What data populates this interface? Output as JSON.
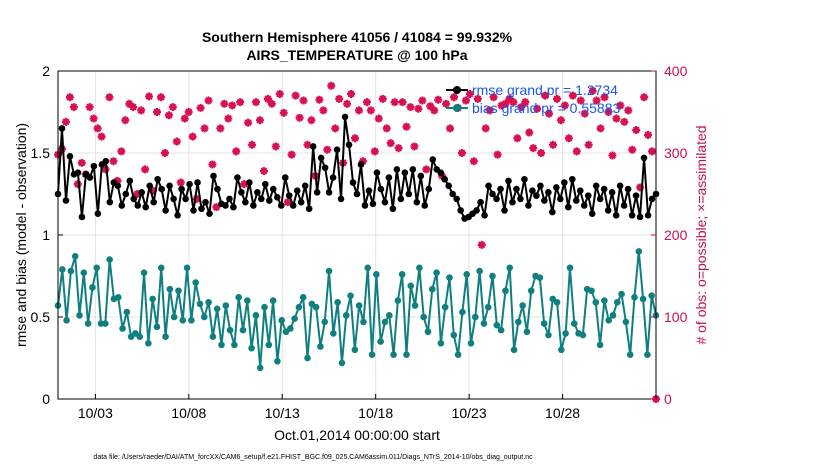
{
  "chart_data": {
    "type": "line",
    "title_line1": "Southern Hemisphere 41056 / 41084 = 99.932%",
    "title_line2": "AIRS_TEMPERATURE @ 100 hPa",
    "xlabel": "Oct.01,2014 00:00:00 start",
    "ylabel_left": "rmse and bias (model - observation)",
    "ylabel_right": "# of obs: o=possible; ×=assimilated",
    "xlim": [
      0,
      32
    ],
    "ylim_left": [
      0,
      2
    ],
    "ylim_right": [
      0,
      400
    ],
    "x_ticks": [
      {
        "x": 2,
        "label": "10/03"
      },
      {
        "x": 7,
        "label": "10/08"
      },
      {
        "x": 12,
        "label": "10/13"
      },
      {
        "x": 17,
        "label": "10/18"
      },
      {
        "x": 22,
        "label": "10/23"
      },
      {
        "x": 27,
        "label": "10/28"
      }
    ],
    "y_ticks_left": [
      "0",
      "0.5",
      "1",
      "1.5",
      "2"
    ],
    "y_ticks_right": [
      "0",
      "100",
      "200",
      "300",
      "400"
    ],
    "grid": true,
    "legend_position": "top-right",
    "colors": {
      "rmse": "#000000",
      "bias": "#0f7f7f",
      "obs": "#d8104f",
      "right_axis": "#c8104f",
      "legend_text": "#1a56e8"
    },
    "series": [
      {
        "name": "rmse grand pr = 1.2734",
        "axis": "left",
        "values": [
          1.25,
          1.65,
          1.21,
          1.48,
          1.37,
          1.38,
          1.11,
          1.37,
          1.35,
          1.42,
          1.13,
          1.43,
          1.45,
          1.2,
          1.32,
          1.3,
          1.18,
          1.25,
          1.33,
          1.22,
          1.18,
          1.26,
          1.17,
          1.3,
          1.2,
          1.34,
          1.28,
          1.15,
          1.3,
          1.22,
          1.12,
          1.28,
          1.22,
          1.31,
          1.15,
          1.32,
          1.16,
          1.2,
          1.13,
          1.36,
          1.28,
          1.19,
          1.18,
          1.22,
          1.17,
          1.35,
          1.26,
          1.2,
          1.32,
          1.18,
          1.26,
          1.22,
          1.31,
          1.21,
          1.28,
          1.23,
          1.18,
          1.35,
          1.24,
          1.18,
          1.27,
          1.2,
          1.3,
          1.16,
          1.54,
          1.26,
          1.47,
          1.41,
          1.26,
          1.35,
          1.52,
          1.22,
          1.72,
          1.55,
          1.32,
          1.25,
          1.43,
          1.18,
          1.27,
          1.19,
          1.38,
          1.28,
          1.2,
          1.35,
          1.16,
          1.4,
          1.22,
          1.38,
          1.25,
          1.4,
          1.2,
          1.36,
          1.18,
          1.28,
          1.46,
          1.4,
          1.38,
          1.34,
          1.3,
          1.25,
          1.22,
          1.15,
          1.1,
          1.11,
          1.13,
          1.15,
          1.2,
          1.12,
          1.3,
          1.25,
          1.22,
          1.28,
          1.15,
          1.33,
          1.2,
          1.28,
          1.22,
          1.34,
          1.18,
          1.27,
          1.24,
          1.3,
          1.21,
          1.26,
          1.14,
          1.29,
          1.22,
          1.32,
          1.17,
          1.34,
          1.21,
          1.27,
          1.18,
          1.24,
          1.13,
          1.3,
          1.22,
          1.28,
          1.15,
          1.26,
          1.12,
          1.3,
          1.18,
          1.28,
          1.12,
          1.24,
          1.11,
          1.47,
          1.12,
          1.22,
          1.25
        ]
      },
      {
        "name": "bias grand pr = 0.55883",
        "axis": "left",
        "values": [
          0.57,
          0.79,
          0.48,
          0.78,
          0.87,
          0.51,
          0.77,
          0.46,
          0.68,
          0.8,
          0.46,
          0.46,
          0.85,
          0.61,
          0.62,
          0.43,
          0.53,
          0.38,
          0.4,
          0.38,
          0.77,
          0.34,
          0.61,
          0.44,
          0.8,
          0.38,
          0.67,
          0.5,
          0.66,
          0.48,
          0.8,
          0.48,
          0.71,
          0.58,
          0.5,
          0.59,
          0.38,
          0.55,
          0.33,
          0.57,
          0.42,
          0.33,
          0.62,
          0.42,
          0.6,
          0.31,
          0.51,
          0.19,
          0.56,
          0.33,
          0.6,
          0.23,
          0.48,
          0.41,
          0.43,
          0.49,
          0.56,
          0.62,
          0.25,
          0.58,
          0.56,
          0.32,
          0.47,
          0.78,
          0.4,
          0.59,
          0.22,
          0.51,
          0.63,
          0.3,
          0.57,
          0.47,
          0.8,
          0.27,
          0.76,
          0.35,
          0.47,
          0.51,
          0.27,
          0.6,
          0.76,
          0.27,
          0.69,
          0.57,
          0.8,
          0.5,
          0.41,
          0.67,
          0.77,
          0.34,
          0.56,
          0.74,
          0.39,
          0.27,
          0.53,
          0.76,
          0.34,
          0.5,
          0.78,
          0.46,
          0.56,
          0.75,
          0.45,
          0.42,
          0.66,
          0.8,
          0.3,
          0.47,
          0.57,
          0.41,
          0.66,
          0.75,
          0.74,
          0.46,
          0.39,
          0.61,
          0.59,
          0.3,
          0.4,
          0.8,
          0.46,
          0.4,
          0.39,
          0.67,
          0.66,
          0.59,
          0.33,
          0.6,
          0.48,
          0.51,
          0.59,
          0.64,
          0.47,
          0.27,
          0.62,
          0.9,
          0.61,
          0.27,
          0.63,
          0.51
        ]
      },
      {
        "name": "obs possible",
        "axis": "right",
        "values": [
          298,
          305,
          338,
          368,
          356,
          262,
          288,
          274,
          356,
          342,
          330,
          320,
          280,
          368,
          290,
          266,
          302,
          340,
          360,
          356,
          250,
          352,
          280,
          369,
          254,
          350,
          368,
          300,
          346,
          356,
          314,
          264,
          342,
          350,
          320,
          244,
          355,
          330,
          364,
          286,
          234,
          330,
          360,
          342,
          358,
          302,
          362,
          262,
          337,
          310,
          362,
          340,
          278,
          366,
          360,
          308,
          372,
          349,
          240,
          298,
          370,
          343,
          364,
          310,
          340,
          272,
          365,
          352,
          304,
          382,
          330,
          366,
          288,
          360,
          372,
          318,
          352,
          290,
          362,
          352,
          302,
          342,
          366,
          330,
          312,
          362,
          306,
          362,
          332,
          356,
          308,
          354,
          364,
          280,
          357,
          352,
          365,
          272,
          360,
          330,
          368,
          355,
          300,
          364,
          372,
          290,
          366,
          188,
          330,
          352,
          368,
          298,
          358,
          360,
          366,
          362,
          318,
          356,
          362,
          325,
          306,
          354,
          300,
          370,
          348,
          310,
          366,
          340,
          358,
          318,
          370,
          302,
          364,
          348,
          310,
          376,
          364,
          330,
          368,
          350,
          297,
          342,
          358,
          338,
          352,
          304,
          328,
          258,
          368,
          322,
          302,
          0
        ]
      }
    ]
  },
  "footer": "data file: /Users/raeder/DAI/ATM_forcXX/CAM6_setup/f.e21.FHIST_BGC.f09_025.CAM6assim.011/Diags_NTrS_2014-10/obs_diag_output.nc"
}
